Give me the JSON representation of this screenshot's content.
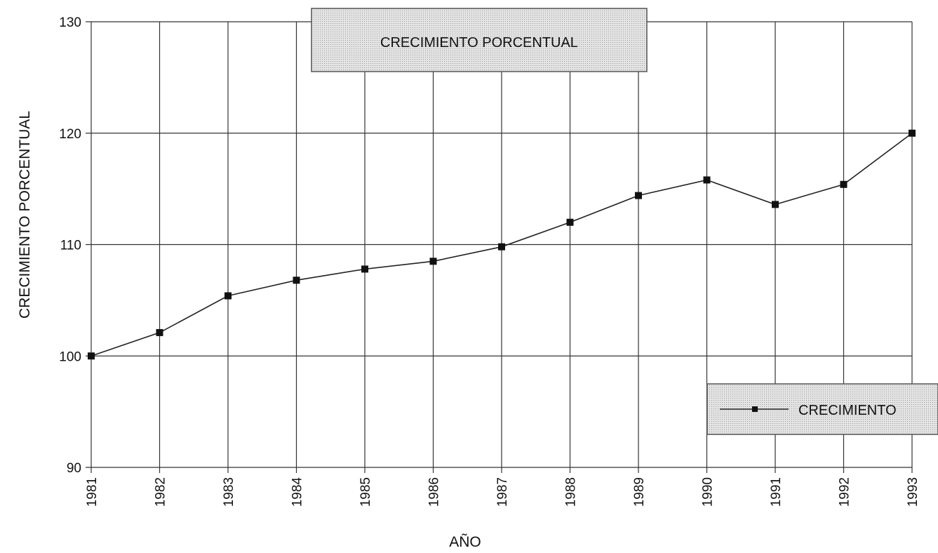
{
  "chart_data": {
    "type": "line",
    "title": "CRECIMIENTO PORCENTUAL",
    "xlabel": "AÑO",
    "ylabel": "CRECIMIENTO PORCENTUAL",
    "x": [
      "1981",
      "1982",
      "1983",
      "1984",
      "1985",
      "1986",
      "1987",
      "1988",
      "1989",
      "1990",
      "1991",
      "1992",
      "1993"
    ],
    "series": [
      {
        "name": "CRECIMIENTO",
        "values": [
          100.0,
          102.1,
          105.4,
          106.8,
          107.8,
          108.5,
          109.8,
          112.0,
          114.4,
          115.8,
          113.6,
          115.4,
          120.0
        ]
      }
    ],
    "ylim": [
      90,
      130
    ],
    "yticks": [
      90,
      100,
      110,
      120,
      130
    ],
    "grid": true,
    "legend_position": "bottom-right",
    "colors": {
      "line": "#222222",
      "marker": "#111111",
      "box_fill": "#d6d6d6",
      "grid": "#333333"
    }
  }
}
